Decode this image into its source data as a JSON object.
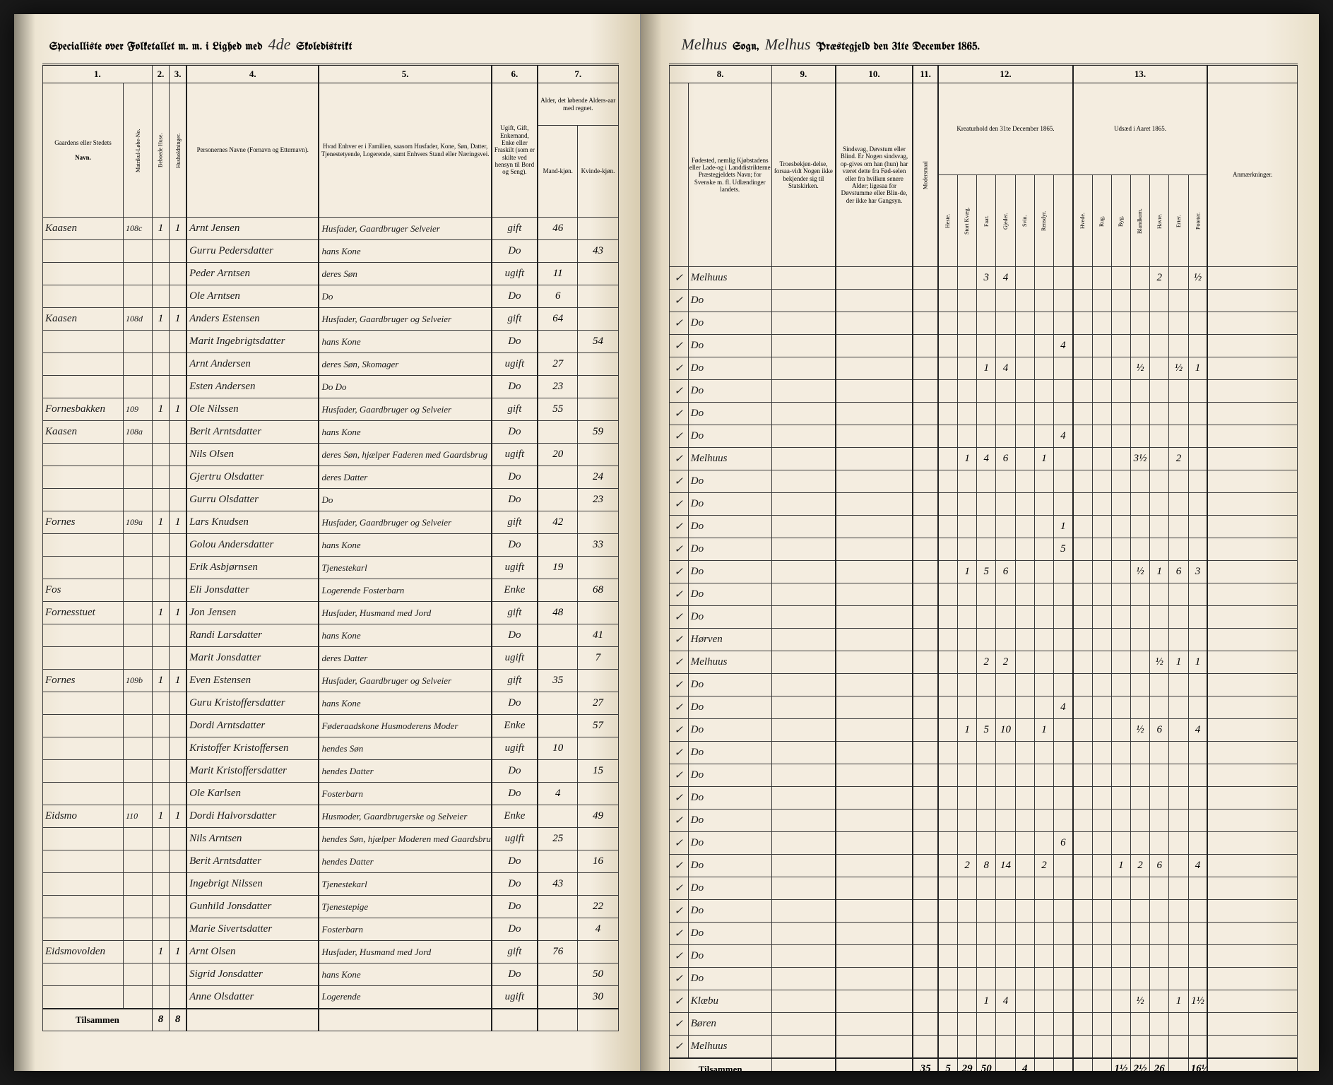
{
  "header": {
    "left_printed_1": "Specialliste over Folketallet m. m. i Lighed med",
    "district_no": "4de",
    "left_printed_2": "Skoledistrikt",
    "sogn_script": "Melhus",
    "sogn_printed": "Sogn,",
    "prgjeld_script": "Melhus",
    "prgjeld_printed": "Præstegjeld den 31te December",
    "year": "1865."
  },
  "left_columns": {
    "c1": "1.",
    "c2": "2.",
    "c3": "3.",
    "c4": "4.",
    "c5": "5.",
    "c6": "6.",
    "c7": "7.",
    "h1": "Gaardens eller Stedets",
    "h1_sub": "Navn.",
    "h1_m": "Matrikul-Løbe-No.",
    "h4": "Personernes Navne (Fornavn og Etternavn).",
    "h5": "Hvad Enhver er i Familien, saasom Husfader, Kone, Søn, Datter, Tjenestetyende, Logerende, samt Enhvers Stand eller Næringsvei.",
    "h6": "Ugift, Gift, Enkemand, Enke eller Fraskilt (som er skilte ved hensyn til Bord og Seng).",
    "h7": "Alder, det løbende Alders-aar med regnet.",
    "h7m": "Mand-kjøn.",
    "h7k": "Kvinde-kjøn."
  },
  "right_columns": {
    "c8": "8.",
    "c9": "9.",
    "c10": "10.",
    "c11": "11.",
    "c12": "12.",
    "c13": "13.",
    "h8": "Fødested, nemlig Kjøbstadens eller Lade-og i Landdistrikterne Præstegjeldets Navn; for Svenske m. fl. Udlændinger landets.",
    "h9": "Troesbekjen-delse, forsaa-vidt Nogen ikke bekjender sig til Statskirken.",
    "h10": "Sindsvag, Døvstum eller Blind. Er Nogen sindsvag, op-gives om han (hun) har været dette fra Fød-selen eller fra hvilken senere Alder; ligesaa for Døvstumme eller Blin-de, der ikke har Gangsyn.",
    "h11": "Modersmaal",
    "h12": "Kreaturhold den 31te December 1865.",
    "h13": "Udsæd i Aaret 1865.",
    "h12_cols": [
      "Heste.",
      "Stort Kvæg.",
      "Faar.",
      "Gjeder.",
      "Svin.",
      "Rensdyr."
    ],
    "h13_cols": [
      "Hvede.",
      "Rug.",
      "Byg.",
      "Blandkorn.",
      "Havre.",
      "Erter.",
      "Poteter."
    ],
    "remarks": "Anmærkninger."
  },
  "rows": [
    {
      "farm": "Kaasen",
      "mno": "108c",
      "p": "1",
      "h": "1",
      "name": "Arnt Jensen",
      "pos": "Husfader, Gaardbruger Selveier",
      "stat": "gift",
      "m": "46",
      "k": "",
      "birth": "Melhuus",
      "c12": [
        "",
        "",
        "3",
        "4",
        "",
        "",
        ""
      ],
      "c13": [
        "",
        "",
        "",
        "",
        "2",
        "",
        "½"
      ]
    },
    {
      "farm": "",
      "mno": "",
      "p": "",
      "h": "",
      "name": "Gurru Pedersdatter",
      "pos": "hans Kone",
      "stat": "Do",
      "m": "",
      "k": "43",
      "birth": "Do",
      "c12": [
        "",
        "",
        "",
        "",
        "",
        "",
        ""
      ],
      "c13": [
        "",
        "",
        "",
        "",
        "",
        "",
        ""
      ]
    },
    {
      "farm": "",
      "mno": "",
      "p": "",
      "h": "",
      "name": "Peder Arntsen",
      "pos": "deres Søn",
      "stat": "ugift",
      "m": "11",
      "k": "",
      "birth": "Do",
      "c12": [
        "",
        "",
        "",
        "",
        "",
        "",
        ""
      ],
      "c13": [
        "",
        "",
        "",
        "",
        "",
        "",
        ""
      ]
    },
    {
      "farm": "",
      "mno": "",
      "p": "",
      "h": "",
      "name": "Ole Arntsen",
      "pos": "Do",
      "stat": "Do",
      "m": "6",
      "k": "",
      "birth": "Do",
      "c12": [
        "",
        "",
        "",
        "",
        "",
        "",
        "4"
      ],
      "c13": [
        "",
        "",
        "",
        "",
        "",
        "",
        ""
      ]
    },
    {
      "farm": "Kaasen",
      "mno": "108d",
      "p": "1",
      "h": "1",
      "name": "Anders Estensen",
      "pos": "Husfader, Gaardbruger og Selveier",
      "stat": "gift",
      "m": "64",
      "k": "",
      "birth": "Do",
      "c12": [
        "",
        "",
        "1",
        "4",
        "",
        "",
        ""
      ],
      "c13": [
        "",
        "",
        "",
        "½",
        "",
        "½",
        "1"
      ]
    },
    {
      "farm": "",
      "mno": "",
      "p": "",
      "h": "",
      "name": "Marit Ingebrigtsdatter",
      "pos": "hans Kone",
      "stat": "Do",
      "m": "",
      "k": "54",
      "birth": "Do",
      "c12": [
        "",
        "",
        "",
        "",
        "",
        "",
        ""
      ],
      "c13": [
        "",
        "",
        "",
        "",
        "",
        "",
        ""
      ]
    },
    {
      "farm": "",
      "mno": "",
      "p": "",
      "h": "",
      "name": "Arnt Andersen",
      "pos": "deres Søn, Skomager",
      "stat": "ugift",
      "m": "27",
      "k": "",
      "birth": "Do",
      "c12": [
        "",
        "",
        "",
        "",
        "",
        "",
        ""
      ],
      "c13": [
        "",
        "",
        "",
        "",
        "",
        "",
        ""
      ]
    },
    {
      "farm": "",
      "mno": "",
      "p": "",
      "h": "",
      "name": "Esten Andersen",
      "pos": "Do      Do",
      "stat": "Do",
      "m": "23",
      "k": "",
      "birth": "Do",
      "c12": [
        "",
        "",
        "",
        "",
        "",
        "",
        "4"
      ],
      "c13": [
        "",
        "",
        "",
        "",
        "",
        "",
        ""
      ]
    },
    {
      "farm": "Fornesbakken",
      "mno": "109",
      "p": "1",
      "h": "1",
      "name": "Ole Nilssen",
      "pos": "Husfader, Gaardbruger og Selveier",
      "stat": "gift",
      "m": "55",
      "k": "",
      "birth": "Melhuus",
      "c12": [
        "",
        "1",
        "4",
        "6",
        "",
        "1",
        ""
      ],
      "c13": [
        "",
        "",
        "",
        "3½",
        "",
        "2",
        ""
      ]
    },
    {
      "farm": "Kaasen",
      "mno": "108a",
      "p": "",
      "h": "",
      "name": "Berit Arntsdatter",
      "pos": "hans Kone",
      "stat": "Do",
      "m": "",
      "k": "59",
      "birth": "Do",
      "c12": [
        "",
        "",
        "",
        "",
        "",
        "",
        ""
      ],
      "c13": [
        "",
        "",
        "",
        "",
        "",
        "",
        ""
      ]
    },
    {
      "farm": "",
      "mno": "",
      "p": "",
      "h": "",
      "name": "Nils Olsen",
      "pos": "deres Søn, hjælper Faderen med Gaardsbrug",
      "stat": "ugift",
      "m": "20",
      "k": "",
      "birth": "Do",
      "c12": [
        "",
        "",
        "",
        "",
        "",
        "",
        ""
      ],
      "c13": [
        "",
        "",
        "",
        "",
        "",
        "",
        ""
      ]
    },
    {
      "farm": "",
      "mno": "",
      "p": "",
      "h": "",
      "name": "Gjertru Olsdatter",
      "pos": "deres Datter",
      "stat": "Do",
      "m": "",
      "k": "24",
      "birth": "Do",
      "c12": [
        "",
        "",
        "",
        "",
        "",
        "",
        "1"
      ],
      "c13": [
        "",
        "",
        "",
        "",
        "",
        "",
        ""
      ]
    },
    {
      "farm": "",
      "mno": "",
      "p": "",
      "h": "",
      "name": "Gurru Olsdatter",
      "pos": "Do",
      "stat": "Do",
      "m": "",
      "k": "23",
      "birth": "Do",
      "c12": [
        "",
        "",
        "",
        "",
        "",
        "",
        "5"
      ],
      "c13": [
        "",
        "",
        "",
        "",
        "",
        "",
        ""
      ]
    },
    {
      "farm": "Fornes",
      "mno": "109a",
      "p": "1",
      "h": "1",
      "name": "Lars Knudsen",
      "pos": "Husfader, Gaardbruger og Selveier",
      "stat": "gift",
      "m": "42",
      "k": "",
      "birth": "Do",
      "c12": [
        "",
        "1",
        "5",
        "6",
        "",
        "",
        ""
      ],
      "c13": [
        "",
        "",
        "",
        "½",
        "1",
        "6",
        "3"
      ]
    },
    {
      "farm": "",
      "mno": "",
      "p": "",
      "h": "",
      "name": "Golou Andersdatter",
      "pos": "hans Kone",
      "stat": "Do",
      "m": "",
      "k": "33",
      "birth": "Do",
      "c12": [
        "",
        "",
        "",
        "",
        "",
        "",
        ""
      ],
      "c13": [
        "",
        "",
        "",
        "",
        "",
        "",
        ""
      ]
    },
    {
      "farm": "",
      "mno": "",
      "p": "",
      "h": "",
      "name": "Erik Asbjørnsen",
      "pos": "Tjenestekarl",
      "stat": "ugift",
      "m": "19",
      "k": "",
      "birth": "Do",
      "c12": [
        "",
        "",
        "",
        "",
        "",
        "",
        ""
      ],
      "c13": [
        "",
        "",
        "",
        "",
        "",
        "",
        ""
      ]
    },
    {
      "farm": "Fos",
      "mno": "",
      "p": "",
      "h": "",
      "name": "Eli Jonsdatter",
      "pos": "Logerende Fosterbarn",
      "stat": "Enke",
      "m": "",
      "k": "68",
      "birth": "Hørven",
      "c12": [
        "",
        "",
        "",
        "",
        "",
        "",
        ""
      ],
      "c13": [
        "",
        "",
        "",
        "",
        "",
        "",
        ""
      ]
    },
    {
      "farm": "Fornesstuet",
      "mno": "",
      "p": "1",
      "h": "1",
      "name": "Jon Jensen",
      "pos": "Husfader, Husmand med Jord",
      "stat": "gift",
      "m": "48",
      "k": "",
      "birth": "Melhuus",
      "c12": [
        "",
        "",
        "2",
        "2",
        "",
        "",
        ""
      ],
      "c13": [
        "",
        "",
        "",
        "",
        "½",
        "1",
        "1"
      ]
    },
    {
      "farm": "",
      "mno": "",
      "p": "",
      "h": "",
      "name": "Randi Larsdatter",
      "pos": "hans Kone",
      "stat": "Do",
      "m": "",
      "k": "41",
      "birth": "Do",
      "c12": [
        "",
        "",
        "",
        "",
        "",
        "",
        ""
      ],
      "c13": [
        "",
        "",
        "",
        "",
        "",
        "",
        ""
      ]
    },
    {
      "farm": "",
      "mno": "",
      "p": "",
      "h": "",
      "name": "Marit Jonsdatter",
      "pos": "deres Datter",
      "stat": "ugift",
      "m": "",
      "k": "7",
      "birth": "Do",
      "c12": [
        "",
        "",
        "",
        "",
        "",
        "",
        "4"
      ],
      "c13": [
        "",
        "",
        "",
        "",
        "",
        "",
        ""
      ]
    },
    {
      "farm": "Fornes",
      "mno": "109b",
      "p": "1",
      "h": "1",
      "name": "Even Estensen",
      "pos": "Husfader, Gaardbruger og Selveier",
      "stat": "gift",
      "m": "35",
      "k": "",
      "birth": "Do",
      "c12": [
        "",
        "1",
        "5",
        "10",
        "",
        "1",
        ""
      ],
      "c13": [
        "",
        "",
        "",
        "½",
        "6",
        "",
        "4"
      ]
    },
    {
      "farm": "",
      "mno": "",
      "p": "",
      "h": "",
      "name": "Guru Kristoffersdatter",
      "pos": "hans Kone",
      "stat": "Do",
      "m": "",
      "k": "27",
      "birth": "Do",
      "c12": [
        "",
        "",
        "",
        "",
        "",
        "",
        ""
      ],
      "c13": [
        "",
        "",
        "",
        "",
        "",
        "",
        ""
      ]
    },
    {
      "farm": "",
      "mno": "",
      "p": "",
      "h": "",
      "name": "Dordi Arntsdatter",
      "pos": "Føderaadskone Husmoderens Moder",
      "stat": "Enke",
      "m": "",
      "k": "57",
      "birth": "Do",
      "c12": [
        "",
        "",
        "",
        "",
        "",
        "",
        ""
      ],
      "c13": [
        "",
        "",
        "",
        "",
        "",
        "",
        ""
      ]
    },
    {
      "farm": "",
      "mno": "",
      "p": "",
      "h": "",
      "name": "Kristoffer Kristoffersen",
      "pos": "hendes Søn",
      "stat": "ugift",
      "m": "10",
      "k": "",
      "birth": "Do",
      "c12": [
        "",
        "",
        "",
        "",
        "",
        "",
        ""
      ],
      "c13": [
        "",
        "",
        "",
        "",
        "",
        "",
        ""
      ]
    },
    {
      "farm": "",
      "mno": "",
      "p": "",
      "h": "",
      "name": "Marit Kristoffersdatter",
      "pos": "hendes Datter",
      "stat": "Do",
      "m": "",
      "k": "15",
      "birth": "Do",
      "c12": [
        "",
        "",
        "",
        "",
        "",
        "",
        ""
      ],
      "c13": [
        "",
        "",
        "",
        "",
        "",
        "",
        ""
      ]
    },
    {
      "farm": "",
      "mno": "",
      "p": "",
      "h": "",
      "name": "Ole Karlsen",
      "pos": "Fosterbarn",
      "stat": "Do",
      "m": "4",
      "k": "",
      "birth": "Do",
      "c12": [
        "",
        "",
        "",
        "",
        "",
        "",
        "6"
      ],
      "c13": [
        "",
        "",
        "",
        "",
        "",
        "",
        ""
      ]
    },
    {
      "farm": "Eidsmo",
      "mno": "110",
      "p": "1",
      "h": "1",
      "name": "Dordi Halvorsdatter",
      "pos": "Husmoder, Gaardbrugerske og Selveier",
      "stat": "Enke",
      "m": "",
      "k": "49",
      "birth": "Do",
      "c12": [
        "",
        "2",
        "8",
        "14",
        "",
        "2",
        ""
      ],
      "c13": [
        "",
        "",
        "1",
        "2",
        "6",
        "",
        "4"
      ]
    },
    {
      "farm": "",
      "mno": "",
      "p": "",
      "h": "",
      "name": "Nils Arntsen",
      "pos": "hendes Søn, hjælper Moderen med Gaardsbrug",
      "stat": "ugift",
      "m": "25",
      "k": "",
      "birth": "Do",
      "c12": [
        "",
        "",
        "",
        "",
        "",
        "",
        ""
      ],
      "c13": [
        "",
        "",
        "",
        "",
        "",
        "",
        ""
      ]
    },
    {
      "farm": "",
      "mno": "",
      "p": "",
      "h": "",
      "name": "Berit Arntsdatter",
      "pos": "hendes Datter",
      "stat": "Do",
      "m": "",
      "k": "16",
      "birth": "Do",
      "c12": [
        "",
        "",
        "",
        "",
        "",
        "",
        ""
      ],
      "c13": [
        "",
        "",
        "",
        "",
        "",
        "",
        ""
      ]
    },
    {
      "farm": "",
      "mno": "",
      "p": "",
      "h": "",
      "name": "Ingebrigt Nilssen",
      "pos": "Tjenestekarl",
      "stat": "Do",
      "m": "43",
      "k": "",
      "birth": "Do",
      "c12": [
        "",
        "",
        "",
        "",
        "",
        "",
        ""
      ],
      "c13": [
        "",
        "",
        "",
        "",
        "",
        "",
        ""
      ]
    },
    {
      "farm": "",
      "mno": "",
      "p": "",
      "h": "",
      "name": "Gunhild Jonsdatter",
      "pos": "Tjenestepige",
      "stat": "Do",
      "m": "",
      "k": "22",
      "birth": "Do",
      "c12": [
        "",
        "",
        "",
        "",
        "",
        "",
        ""
      ],
      "c13": [
        "",
        "",
        "",
        "",
        "",
        "",
        ""
      ]
    },
    {
      "farm": "",
      "mno": "",
      "p": "",
      "h": "",
      "name": "Marie Sivertsdatter",
      "pos": "Fosterbarn",
      "stat": "Do",
      "m": "",
      "k": "4",
      "birth": "Do",
      "c12": [
        "",
        "",
        "",
        "",
        "",
        "",
        ""
      ],
      "c13": [
        "",
        "",
        "",
        "",
        "",
        "",
        ""
      ]
    },
    {
      "farm": "Eidsmovolden",
      "mno": "",
      "p": "1",
      "h": "1",
      "name": "Arnt Olsen",
      "pos": "Husfader, Husmand med Jord",
      "stat": "gift",
      "m": "76",
      "k": "",
      "birth": "Klæbu",
      "c12": [
        "",
        "",
        "1",
        "4",
        "",
        "",
        ""
      ],
      "c13": [
        "",
        "",
        "",
        "½",
        "",
        "1",
        "1½"
      ]
    },
    {
      "farm": "",
      "mno": "",
      "p": "",
      "h": "",
      "name": "Sigrid Jonsdatter",
      "pos": "hans Kone",
      "stat": "Do",
      "m": "",
      "k": "50",
      "birth": "Børen",
      "c12": [
        "",
        "",
        "",
        "",
        "",
        "",
        ""
      ],
      "c13": [
        "",
        "",
        "",
        "",
        "",
        "",
        ""
      ]
    },
    {
      "farm": "",
      "mno": "",
      "p": "",
      "h": "",
      "name": "Anne Olsdatter",
      "pos": "Logerende",
      "stat": "ugift",
      "m": "",
      "k": "30",
      "birth": "Melhuus",
      "c12": [
        "",
        "",
        "",
        "",
        "",
        "",
        ""
      ],
      "c13": [
        "",
        "",
        "",
        "",
        "",
        "",
        ""
      ]
    }
  ],
  "totals": {
    "left_label": "Tilsammen",
    "p": "8",
    "h": "8",
    "right_label": "Tilsammen",
    "c11": "35",
    "c12": [
      "5",
      "29",
      "50",
      "",
      "4",
      ""
    ],
    "c13": [
      "",
      "",
      "1½",
      "2½",
      "26",
      "",
      "16½"
    ]
  }
}
